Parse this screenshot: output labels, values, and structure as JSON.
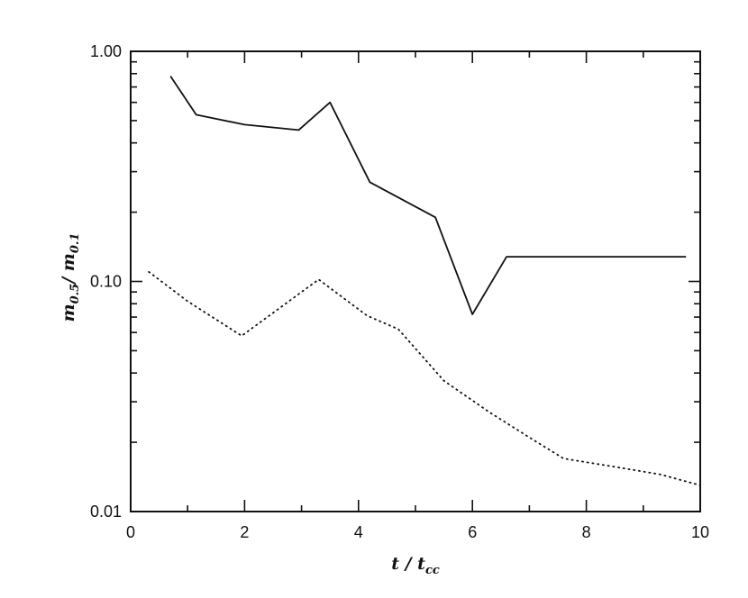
{
  "figure": {
    "background": "#ffffff",
    "frame_color": "#111111"
  },
  "chart_data": {
    "type": "line",
    "title": "",
    "xlabel": "t / t_cc",
    "ylabel": "m_0.5 / m_0.1",
    "xlabel_parts": {
      "base": "t / t",
      "sub": "cc"
    },
    "ylabel_parts": {
      "m1": "m",
      "sub1": "0.5",
      "sep": "/ ",
      "m2": "m",
      "sub2": "0.1"
    },
    "xscale": "linear",
    "yscale": "log",
    "xlim": [
      0,
      10
    ],
    "ylim": [
      0.01,
      1.0
    ],
    "grid": false,
    "legend": null,
    "x_major_ticks": [
      0,
      2,
      4,
      6,
      8,
      10
    ],
    "x_tick_labels": [
      "0",
      "2",
      "4",
      "6",
      "8",
      "10"
    ],
    "x_minor_ticks": [
      1,
      3,
      5,
      7,
      9
    ],
    "y_major_ticks": [
      0.01,
      0.1,
      1.0
    ],
    "y_tick_labels": [
      "0.01",
      "0.10",
      "1.00"
    ],
    "y_minor_ticks": [
      0.02,
      0.03,
      0.04,
      0.05,
      0.06,
      0.07,
      0.08,
      0.09,
      0.2,
      0.3,
      0.4,
      0.5,
      0.6,
      0.7,
      0.8,
      0.9
    ],
    "series": [
      {
        "name": "solid",
        "style": "solid",
        "color": "#111111",
        "points": [
          [
            0.7,
            0.78
          ],
          [
            1.15,
            0.53
          ],
          [
            2.0,
            0.48
          ],
          [
            2.95,
            0.455
          ],
          [
            3.5,
            0.6
          ],
          [
            4.2,
            0.27
          ],
          [
            5.35,
            0.19
          ],
          [
            6.0,
            0.072
          ],
          [
            6.6,
            0.128
          ],
          [
            9.75,
            0.128
          ]
        ]
      },
      {
        "name": "dotted",
        "style": "dotted",
        "color": "#111111",
        "points": [
          [
            0.32,
            0.11
          ],
          [
            1.0,
            0.082
          ],
          [
            1.95,
            0.058
          ],
          [
            3.3,
            0.102
          ],
          [
            4.15,
            0.071
          ],
          [
            4.7,
            0.062
          ],
          [
            5.5,
            0.037
          ],
          [
            6.3,
            0.027
          ],
          [
            7.0,
            0.021
          ],
          [
            7.6,
            0.017
          ],
          [
            8.6,
            0.0155
          ],
          [
            9.3,
            0.0145
          ],
          [
            10.0,
            0.013
          ]
        ]
      }
    ]
  }
}
